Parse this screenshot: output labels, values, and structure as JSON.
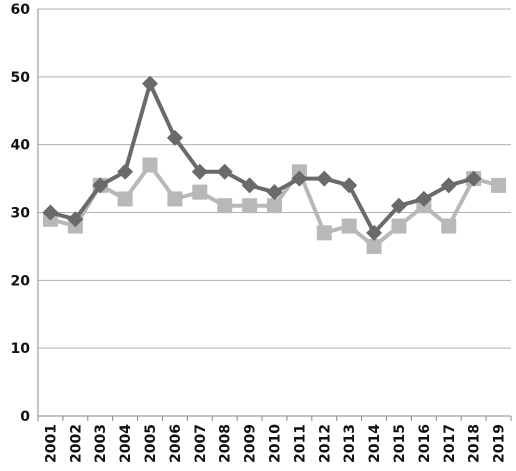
{
  "chart_data": {
    "type": "line",
    "title": "",
    "xlabel": "",
    "ylabel": "",
    "ylim": [
      0,
      60
    ],
    "yticks": [
      "0",
      "10",
      "20",
      "30",
      "40",
      "50",
      "60"
    ],
    "categories": [
      "2001",
      "2002",
      "2003",
      "2004",
      "2005",
      "2006",
      "2007",
      "2008",
      "2009",
      "2010",
      "2011",
      "2012",
      "2013",
      "2014",
      "2015",
      "2016",
      "2017",
      "2018",
      "2019"
    ],
    "grid": "horizontal",
    "legend": "none",
    "series": [
      {
        "marker": "diamond",
        "color": "#6a6a6a",
        "values": [
          30,
          29,
          34,
          36,
          49,
          41,
          36,
          36,
          34,
          33,
          35,
          35,
          34,
          27,
          31,
          32,
          34,
          35,
          null
        ]
      },
      {
        "marker": "square",
        "color": "#b8b8b8",
        "values": [
          29,
          28,
          34,
          32,
          37,
          32,
          33,
          31,
          31,
          31,
          36,
          27,
          28,
          25,
          28,
          31,
          28,
          35,
          34
        ]
      }
    ]
  }
}
